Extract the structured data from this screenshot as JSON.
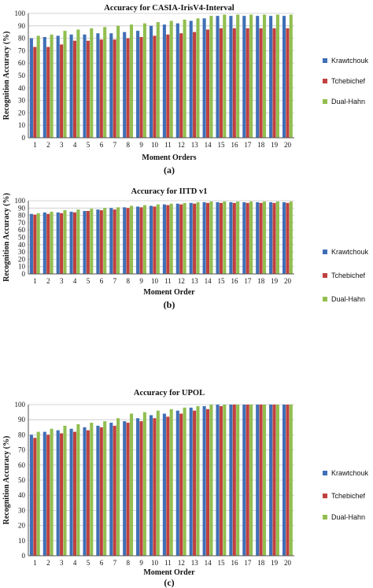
{
  "colors": {
    "Krawtchouk": "#3f6fb6",
    "Tchebichef": "#c0413f",
    "Dual-Hahn": "#92be4f",
    "grid": "#c8c8c8"
  },
  "chart_data": [
    {
      "type": "bar",
      "title": "Accuracy for CASIA-IrisV4-Interval",
      "xlabel": "Moment Orders",
      "ylabel": "Recognition Accuracy (%)",
      "panel_label": "(a)",
      "ylim": [
        0,
        100
      ],
      "yticks": [
        0,
        10,
        20,
        30,
        40,
        50,
        60,
        70,
        80,
        90,
        100
      ],
      "grid": true,
      "legend": "right",
      "categories": [
        "1",
        "2",
        "3",
        "4",
        "5",
        "6",
        "7",
        "8",
        "9",
        "10",
        "11",
        "12",
        "13",
        "14",
        "15",
        "16",
        "17",
        "18",
        "19",
        "20"
      ],
      "series": [
        {
          "name": "Krawtchouk",
          "values": [
            80,
            81,
            82,
            83,
            83,
            84,
            84,
            85,
            86,
            90,
            91,
            92,
            94,
            96,
            98,
            98,
            98,
            98,
            98,
            98
          ]
        },
        {
          "name": "Tchebichef",
          "values": [
            73,
            73,
            75,
            78,
            78,
            79,
            79,
            80,
            81,
            82,
            83,
            84,
            85,
            87,
            88,
            88,
            88,
            88,
            88,
            88
          ]
        },
        {
          "name": "Dual-Hahn",
          "values": [
            82,
            83,
            86,
            87,
            88,
            89,
            90,
            91,
            92,
            93,
            94,
            95,
            96,
            98,
            99,
            99,
            99,
            99,
            99,
            99
          ]
        }
      ]
    },
    {
      "type": "bar",
      "title": "Accuracy for IITD v1",
      "xlabel": "Moment Order",
      "ylabel": "Recognition Accuracy (%)",
      "panel_label": "(b)",
      "ylim": [
        0,
        100
      ],
      "yticks": [
        0,
        10,
        20,
        30,
        40,
        50,
        60,
        70,
        80,
        90,
        100
      ],
      "grid": true,
      "legend": "right",
      "categories": [
        "1",
        "2",
        "3",
        "4",
        "5",
        "6",
        "7",
        "8",
        "9",
        "10",
        "11",
        "12",
        "13",
        "14",
        "15",
        "16",
        "17",
        "18",
        "19",
        "20"
      ],
      "series": [
        {
          "name": "Krawtchouk",
          "values": [
            82,
            84,
            84,
            85,
            86,
            88,
            90,
            91,
            92,
            93,
            95,
            96,
            97,
            98,
            98,
            98,
            98,
            98,
            98,
            98
          ]
        },
        {
          "name": "Tchebichef",
          "values": [
            81,
            82,
            83,
            84,
            86,
            87,
            88,
            90,
            91,
            92,
            94,
            95,
            96,
            97,
            97,
            97,
            97,
            97,
            97,
            97
          ]
        },
        {
          "name": "Dual-Hahn",
          "values": [
            83,
            85,
            87,
            88,
            89,
            90,
            91,
            93,
            94,
            95,
            96,
            97,
            98,
            99,
            99,
            99,
            99,
            99,
            99,
            99
          ]
        }
      ]
    },
    {
      "type": "bar",
      "title": "Accuracy for UPOL",
      "xlabel": "Moment Order",
      "ylabel": "Recognition Accuracy (%)",
      "panel_label": "(c)",
      "ylim": [
        0,
        100
      ],
      "yticks": [
        0,
        10,
        20,
        30,
        40,
        50,
        60,
        70,
        80,
        90,
        100
      ],
      "grid": true,
      "legend": "right",
      "categories": [
        "1",
        "2",
        "3",
        "4",
        "5",
        "6",
        "7",
        "8",
        "9",
        "10",
        "11",
        "12",
        "13",
        "14",
        "15",
        "16",
        "17",
        "18",
        "19",
        "20"
      ],
      "series": [
        {
          "name": "Krawtchouk",
          "values": [
            80,
            82,
            83,
            84,
            85,
            86,
            88,
            89,
            91,
            93,
            94,
            96,
            98,
            99,
            100,
            100,
            100,
            100,
            100,
            100
          ]
        },
        {
          "name": "Tchebichef",
          "values": [
            78,
            80,
            81,
            82,
            83,
            85,
            86,
            88,
            89,
            91,
            92,
            94,
            96,
            97,
            99,
            100,
            100,
            100,
            100,
            100
          ]
        },
        {
          "name": "Dual-Hahn",
          "values": [
            82,
            84,
            86,
            87,
            88,
            89,
            91,
            94,
            95,
            96,
            97,
            98,
            99,
            100,
            100,
            100,
            100,
            100,
            100,
            100
          ]
        }
      ]
    }
  ]
}
